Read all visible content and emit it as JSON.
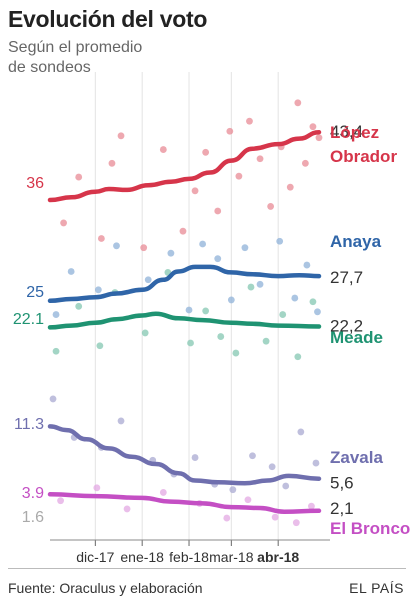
{
  "chart_data": {
    "type": "line",
    "title": "Evolución del voto",
    "subtitle": "Según el promedio de sondeos",
    "x_ticks": [
      {
        "label": "dic-17",
        "date": "2017-12-01",
        "bold": false
      },
      {
        "label": "ene-18",
        "date": "2018-01-01",
        "bold": false
      },
      {
        "label": "feb-18",
        "date": "2018-02-01",
        "bold": false
      },
      {
        "label": "mar-18",
        "date": "2018-03-01",
        "bold": false
      },
      {
        "label": "abr-18",
        "date": "2018-04-01",
        "bold": true
      }
    ],
    "x_range": [
      "2017-11-01",
      "2018-04-30"
    ],
    "y_range": [
      0,
      48
    ],
    "grid": "vertical",
    "series": [
      {
        "name": "López Obrador",
        "label_lines": [
          "López",
          "Obrador"
        ],
        "color": "#d6354a",
        "point_color": "#e88b96",
        "start_label": "36",
        "end_label": "43,4",
        "line": [
          [
            "2017-11-01",
            36.0
          ],
          [
            "2017-11-15",
            36.3
          ],
          [
            "2017-12-01",
            36.9
          ],
          [
            "2017-12-10",
            37.2
          ],
          [
            "2017-12-22",
            37.1
          ],
          [
            "2018-01-05",
            37.6
          ],
          [
            "2018-01-20",
            38.0
          ],
          [
            "2018-02-01",
            38.3
          ],
          [
            "2018-02-15",
            39.0
          ],
          [
            "2018-03-01",
            40.3
          ],
          [
            "2018-03-15",
            41.6
          ],
          [
            "2018-04-01",
            42.1
          ],
          [
            "2018-04-15",
            42.7
          ],
          [
            "2018-04-28",
            43.4
          ]
        ],
        "points": [
          [
            "2017-11-10",
            33.5
          ],
          [
            "2017-11-20",
            38.5
          ],
          [
            "2017-12-05",
            31.8
          ],
          [
            "2017-12-12",
            40.0
          ],
          [
            "2017-12-18",
            43.0
          ],
          [
            "2018-01-02",
            30.8
          ],
          [
            "2018-01-15",
            41.5
          ],
          [
            "2018-01-28",
            32.6
          ],
          [
            "2018-02-05",
            37.0
          ],
          [
            "2018-02-12",
            41.2
          ],
          [
            "2018-02-20",
            34.8
          ],
          [
            "2018-02-28",
            43.5
          ],
          [
            "2018-03-06",
            38.6
          ],
          [
            "2018-03-13",
            44.6
          ],
          [
            "2018-03-20",
            40.5
          ],
          [
            "2018-03-27",
            35.3
          ],
          [
            "2018-04-03",
            41.8
          ],
          [
            "2018-04-09",
            37.4
          ],
          [
            "2018-04-14",
            46.6
          ],
          [
            "2018-04-19",
            40.0
          ],
          [
            "2018-04-24",
            44.0
          ],
          [
            "2018-04-28",
            42.8
          ]
        ]
      },
      {
        "name": "Anaya",
        "label_lines": [
          "Anaya"
        ],
        "color": "#2f65a8",
        "point_color": "#8fb1d8",
        "start_label": "25",
        "end_label": "27,7",
        "line": [
          [
            "2017-11-01",
            25.0
          ],
          [
            "2017-11-15",
            25.2
          ],
          [
            "2017-12-01",
            25.4
          ],
          [
            "2017-12-15",
            25.8
          ],
          [
            "2018-01-01",
            26.2
          ],
          [
            "2018-01-15",
            27.3
          ],
          [
            "2018-01-25",
            28.2
          ],
          [
            "2018-02-05",
            28.7
          ],
          [
            "2018-02-15",
            28.7
          ],
          [
            "2018-03-01",
            28.1
          ],
          [
            "2018-03-15",
            27.9
          ],
          [
            "2018-04-01",
            27.7
          ],
          [
            "2018-04-15",
            27.8
          ],
          [
            "2018-04-28",
            27.7
          ]
        ],
        "points": [
          [
            "2017-11-05",
            23.5
          ],
          [
            "2017-11-15",
            28.2
          ],
          [
            "2017-12-03",
            26.2
          ],
          [
            "2017-12-15",
            31.0
          ],
          [
            "2018-01-05",
            27.3
          ],
          [
            "2018-01-20",
            30.2
          ],
          [
            "2018-02-01",
            24.0
          ],
          [
            "2018-02-10",
            31.2
          ],
          [
            "2018-02-20",
            29.6
          ],
          [
            "2018-03-01",
            25.1
          ],
          [
            "2018-03-10",
            30.8
          ],
          [
            "2018-03-20",
            26.8
          ],
          [
            "2018-04-02",
            31.5
          ],
          [
            "2018-04-12",
            25.3
          ],
          [
            "2018-04-20",
            28.9
          ],
          [
            "2018-04-27",
            23.8
          ]
        ]
      },
      {
        "name": "Meade",
        "label_lines": [
          "Meade"
        ],
        "color": "#1f9372",
        "point_color": "#84c7b1",
        "start_label": "22.1",
        "end_label": "22,2",
        "line": [
          [
            "2017-11-01",
            22.1
          ],
          [
            "2017-11-15",
            22.3
          ],
          [
            "2017-12-01",
            22.6
          ],
          [
            "2017-12-15",
            23.0
          ],
          [
            "2018-01-01",
            23.4
          ],
          [
            "2018-01-10",
            23.6
          ],
          [
            "2018-01-25",
            23.1
          ],
          [
            "2018-02-10",
            22.9
          ],
          [
            "2018-03-01",
            22.6
          ],
          [
            "2018-03-15",
            22.5
          ],
          [
            "2018-04-01",
            22.3
          ],
          [
            "2018-04-28",
            22.2
          ]
        ],
        "points": [
          [
            "2017-11-05",
            19.5
          ],
          [
            "2017-11-20",
            24.4
          ],
          [
            "2017-12-04",
            20.1
          ],
          [
            "2017-12-14",
            25.9
          ],
          [
            "2018-01-03",
            21.5
          ],
          [
            "2018-01-18",
            28.1
          ],
          [
            "2018-02-02",
            20.4
          ],
          [
            "2018-02-12",
            23.9
          ],
          [
            "2018-02-22",
            21.1
          ],
          [
            "2018-03-04",
            19.3
          ],
          [
            "2018-03-14",
            26.5
          ],
          [
            "2018-03-24",
            20.6
          ],
          [
            "2018-04-04",
            23.5
          ],
          [
            "2018-04-14",
            18.9
          ],
          [
            "2018-04-24",
            24.9
          ]
        ]
      },
      {
        "name": "Zavala",
        "label_lines": [
          "Zavala"
        ],
        "color": "#6f6fae",
        "point_color": "#aaaad2",
        "start_label": "11.3",
        "end_label": "5,6",
        "line": [
          [
            "2017-11-01",
            11.3
          ],
          [
            "2017-11-12",
            10.9
          ],
          [
            "2017-11-25",
            9.9
          ],
          [
            "2017-12-10",
            8.9
          ],
          [
            "2017-12-25",
            8.0
          ],
          [
            "2018-01-10",
            7.2
          ],
          [
            "2018-01-25",
            6.2
          ],
          [
            "2018-02-05",
            5.4
          ],
          [
            "2018-02-20",
            5.2
          ],
          [
            "2018-03-10",
            5.1
          ],
          [
            "2018-03-25",
            5.4
          ],
          [
            "2018-04-08",
            5.9
          ],
          [
            "2018-04-28",
            5.6
          ]
        ],
        "points": [
          [
            "2017-11-03",
            14.3
          ],
          [
            "2017-11-17",
            10.1
          ],
          [
            "2017-12-05",
            9.0
          ],
          [
            "2017-12-18",
            11.9
          ],
          [
            "2018-01-08",
            7.6
          ],
          [
            "2018-01-22",
            6.1
          ],
          [
            "2018-02-05",
            7.9
          ],
          [
            "2018-02-18",
            5.0
          ],
          [
            "2018-03-02",
            4.4
          ],
          [
            "2018-03-15",
            8.1
          ],
          [
            "2018-03-28",
            6.9
          ],
          [
            "2018-04-06",
            4.8
          ],
          [
            "2018-04-16",
            10.7
          ],
          [
            "2018-04-26",
            7.3
          ]
        ]
      },
      {
        "name": "El Bronco",
        "label_lines": [
          "El Bronco"
        ],
        "color": "#c44fc4",
        "point_color": "#e3a8e3",
        "start_label": "3.9",
        "end_label": "2,1",
        "line": [
          [
            "2017-11-01",
            3.9
          ],
          [
            "2017-12-01",
            3.7
          ],
          [
            "2018-01-01",
            3.5
          ],
          [
            "2018-01-20",
            3.1
          ],
          [
            "2018-02-10",
            2.9
          ],
          [
            "2018-03-01",
            2.5
          ],
          [
            "2018-03-20",
            2.4
          ],
          [
            "2018-04-05",
            2.0
          ],
          [
            "2018-04-28",
            2.1
          ]
        ],
        "points": [
          [
            "2017-11-08",
            3.2
          ],
          [
            "2017-12-02",
            4.6
          ],
          [
            "2017-12-22",
            2.3
          ],
          [
            "2018-01-15",
            4.1
          ],
          [
            "2018-02-08",
            2.9
          ],
          [
            "2018-02-26",
            1.3
          ],
          [
            "2018-03-12",
            3.3
          ],
          [
            "2018-03-30",
            1.4
          ],
          [
            "2018-04-13",
            0.8
          ],
          [
            "2018-04-23",
            2.6
          ]
        ]
      }
    ],
    "extra_start_labels": [
      {
        "label": "1.6",
        "value": 1.6,
        "color": "#aaaaaa"
      }
    ]
  },
  "footer": {
    "source": "Fuente: Oraculus y elaboración",
    "brand": "EL PAÍS"
  }
}
